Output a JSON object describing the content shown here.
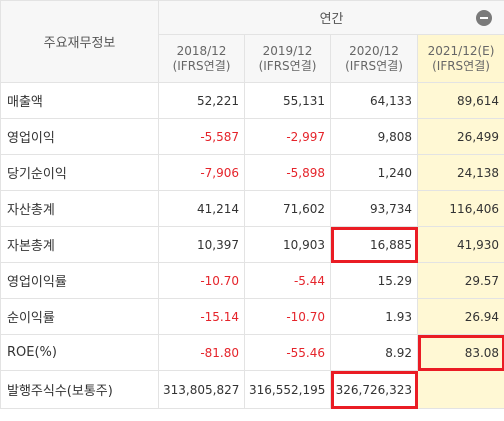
{
  "header": {
    "corner_label": "주요재무정보",
    "period_label": "연간",
    "collapse_icon": "minus-circle-icon",
    "years": [
      {
        "year": "2018/12",
        "standard": "(IFRS연결)"
      },
      {
        "year": "2019/12",
        "standard": "(IFRS연결)"
      },
      {
        "year": "2020/12",
        "standard": "(IFRS연결)"
      },
      {
        "year": "2021/12(E)",
        "standard": "(IFRS연결)"
      }
    ]
  },
  "rows": [
    {
      "label": "매출액",
      "values": [
        "52,221",
        "55,131",
        "64,133",
        "89,614"
      ]
    },
    {
      "label": "영업이익",
      "values": [
        "-5,587",
        "-2,997",
        "9,808",
        "26,499"
      ]
    },
    {
      "label": "당기순이익",
      "values": [
        "-7,906",
        "-5,898",
        "1,240",
        "24,138"
      ]
    },
    {
      "label": "자산총계",
      "values": [
        "41,214",
        "71,602",
        "93,734",
        "116,406"
      ]
    },
    {
      "label": "자본총계",
      "values": [
        "10,397",
        "10,903",
        "16,885",
        "41,930"
      ]
    },
    {
      "label": "영업이익률",
      "values": [
        "-10.70",
        "-5.44",
        "15.29",
        "29.57"
      ]
    },
    {
      "label": "순이익률",
      "values": [
        "-15.14",
        "-10.70",
        "1.93",
        "26.94"
      ]
    },
    {
      "label": "ROE(%)",
      "values": [
        "-81.80",
        "-55.46",
        "8.92",
        "83.08"
      ]
    },
    {
      "label": "발행주식수(보통주)",
      "values": [
        "313,805,827",
        "316,552,195",
        "326,726,323",
        ""
      ]
    }
  ],
  "colors": {
    "negative": "#e5242b",
    "estimate_bg": "#fff8d4",
    "highlight_box": "#ea1c24"
  }
}
